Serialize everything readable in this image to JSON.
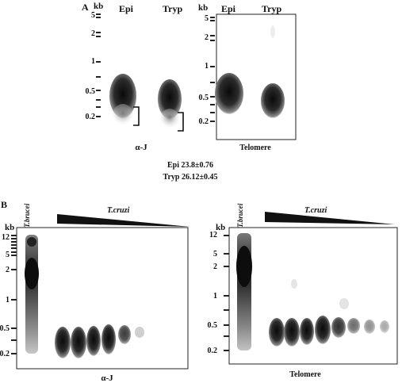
{
  "panel_a": {
    "letter": "A",
    "left_blot": {
      "kb_label": "kb",
      "lanes": [
        "Epi",
        "Tryp"
      ],
      "markers": [
        "5",
        "2",
        "1",
        "0.5",
        "0.2"
      ],
      "caption": "α-J"
    },
    "right_blot": {
      "kb_label": "kb",
      "lanes": [
        "Epi",
        "Tryp"
      ],
      "markers": [
        "5",
        "2",
        "1",
        "0.5",
        "0.2"
      ],
      "caption": "Telomere"
    },
    "stats": [
      "Epi 23.8±0.76",
      "Tryp 26.12±0.45"
    ]
  },
  "panel_b": {
    "letter": "B",
    "left_blot": {
      "kb_label": "kb",
      "control_lane": "T.brucei",
      "gradient_label": "T.cruzi",
      "markers": [
        "12",
        "5",
        "2",
        "1",
        "0.5",
        "0.2"
      ],
      "caption": "α-J"
    },
    "right_blot": {
      "kb_label": "kb",
      "control_lane": "T.brucei",
      "gradient_label": "T.cruzi",
      "markers": [
        "12",
        "5",
        "2",
        "1",
        "0.5",
        "0.2"
      ],
      "caption": "Telomere"
    }
  },
  "colors": {
    "ink": "#111111",
    "band_dark": "#1a1a1a",
    "background": "#ffffff"
  }
}
